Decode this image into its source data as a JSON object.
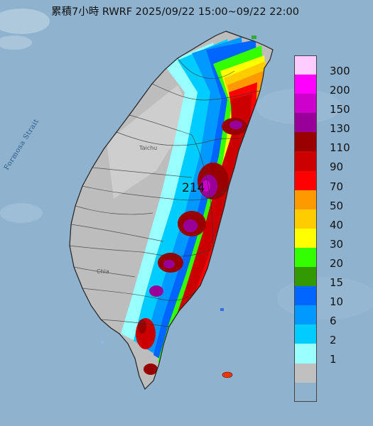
{
  "title": "累積7小時 RWRF 2025/09/22 15:00~09/22 22:00",
  "strait_label": "Formosa Strait",
  "peak_label": "214",
  "places": [
    {
      "name": "Taichu"
    },
    {
      "name": "Chia"
    }
  ],
  "colors": {
    "sea": "#8fb3cf",
    "land_gray": "#b9b9b9",
    "coast": "#222222"
  },
  "legend": [
    {
      "label": "300",
      "color": "#ffccff"
    },
    {
      "label": "200",
      "color": "#ff00ff"
    },
    {
      "label": "150",
      "color": "#cc00cc"
    },
    {
      "label": "130",
      "color": "#990099"
    },
    {
      "label": "110",
      "color": "#990000"
    },
    {
      "label": "90",
      "color": "#cc0000"
    },
    {
      "label": "70",
      "color": "#ff0000"
    },
    {
      "label": "50",
      "color": "#ff9900"
    },
    {
      "label": "40",
      "color": "#ffcc00"
    },
    {
      "label": "30",
      "color": "#ffff00"
    },
    {
      "label": "20",
      "color": "#33ff00"
    },
    {
      "label": "15",
      "color": "#339900"
    },
    {
      "label": "10",
      "color": "#0066ff"
    },
    {
      "label": "6",
      "color": "#0099ff"
    },
    {
      "label": "2",
      "color": "#00ccff"
    },
    {
      "label": "1",
      "color": "#99ffff"
    },
    {
      "label": "",
      "color": "#c0c0c0"
    }
  ]
}
